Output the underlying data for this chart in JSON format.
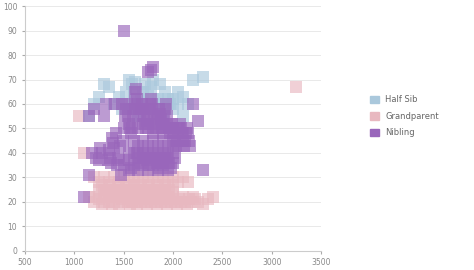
{
  "title": "",
  "xlim": [
    500,
    3500
  ],
  "ylim": [
    0,
    100
  ],
  "xticks": [
    500,
    1000,
    1500,
    2000,
    2500,
    3000,
    3500
  ],
  "yticks": [
    0,
    10,
    20,
    30,
    40,
    50,
    60,
    70,
    80,
    90,
    100
  ],
  "background_color": "#ffffff",
  "grid_color": "#e0e0e0",
  "legend": [
    {
      "label": "Half Sib",
      "color": "#aac8dc"
    },
    {
      "label": "Grandparent",
      "color": "#e8b8c0"
    },
    {
      "label": "Nibling",
      "color": "#9966bb"
    }
  ],
  "half_sib_seed": 10,
  "grandparent_seed": 20,
  "nibling_seed": 30,
  "half_sib": {
    "color": "#aac8dc",
    "points": [
      [
        1300,
        68
      ],
      [
        1350,
        67
      ],
      [
        1400,
        60
      ],
      [
        1450,
        63
      ],
      [
        1480,
        58
      ],
      [
        1500,
        60
      ],
      [
        1520,
        65
      ],
      [
        1550,
        70
      ],
      [
        1580,
        68
      ],
      [
        1600,
        65
      ],
      [
        1620,
        69
      ],
      [
        1650,
        60
      ],
      [
        1680,
        62
      ],
      [
        1700,
        65
      ],
      [
        1720,
        68
      ],
      [
        1750,
        65
      ],
      [
        1780,
        67
      ],
      [
        1800,
        70
      ],
      [
        1820,
        60
      ],
      [
        1850,
        62
      ],
      [
        1870,
        68
      ],
      [
        1900,
        60
      ],
      [
        1920,
        65
      ],
      [
        1950,
        62
      ],
      [
        1970,
        60
      ],
      [
        2000,
        62
      ],
      [
        2050,
        65
      ],
      [
        2100,
        63
      ],
      [
        2150,
        60
      ],
      [
        2200,
        70
      ],
      [
        2300,
        71
      ],
      [
        1150,
        55
      ],
      [
        1200,
        60
      ],
      [
        1250,
        63
      ],
      [
        1550,
        58
      ],
      [
        1600,
        60
      ],
      [
        1650,
        55
      ],
      [
        1700,
        60
      ],
      [
        1750,
        58
      ],
      [
        1800,
        62
      ],
      [
        1850,
        60
      ],
      [
        1900,
        55
      ],
      [
        1950,
        60
      ],
      [
        2000,
        58
      ],
      [
        2050,
        60
      ],
      [
        2100,
        55
      ]
    ]
  },
  "grandparent": {
    "color": "#e8b8c0",
    "points": [
      [
        1050,
        55
      ],
      [
        1100,
        40
      ],
      [
        1150,
        22
      ],
      [
        1200,
        20
      ],
      [
        1220,
        22
      ],
      [
        1250,
        21
      ],
      [
        1280,
        19
      ],
      [
        1300,
        20
      ],
      [
        1320,
        22
      ],
      [
        1350,
        20
      ],
      [
        1380,
        19
      ],
      [
        1400,
        20
      ],
      [
        1420,
        22
      ],
      [
        1450,
        19
      ],
      [
        1480,
        21
      ],
      [
        1500,
        20
      ],
      [
        1520,
        22
      ],
      [
        1540,
        20
      ],
      [
        1560,
        19
      ],
      [
        1580,
        20
      ],
      [
        1600,
        22
      ],
      [
        1620,
        20
      ],
      [
        1640,
        19
      ],
      [
        1660,
        21
      ],
      [
        1680,
        20
      ],
      [
        1700,
        22
      ],
      [
        1720,
        20
      ],
      [
        1740,
        19
      ],
      [
        1760,
        21
      ],
      [
        1780,
        20
      ],
      [
        1800,
        22
      ],
      [
        1820,
        20
      ],
      [
        1840,
        19
      ],
      [
        1860,
        21
      ],
      [
        1880,
        20
      ],
      [
        1900,
        22
      ],
      [
        1920,
        20
      ],
      [
        1940,
        19
      ],
      [
        1960,
        21
      ],
      [
        1980,
        20
      ],
      [
        2000,
        22
      ],
      [
        2020,
        20
      ],
      [
        2040,
        19
      ],
      [
        2060,
        21
      ],
      [
        2080,
        20
      ],
      [
        2100,
        22
      ],
      [
        2120,
        20
      ],
      [
        2140,
        19
      ],
      [
        2160,
        21
      ],
      [
        2180,
        20
      ],
      [
        2200,
        22
      ],
      [
        2220,
        21
      ],
      [
        2250,
        20
      ],
      [
        2300,
        19
      ],
      [
        2350,
        21
      ],
      [
        2400,
        22
      ],
      [
        3250,
        67
      ],
      [
        1300,
        25
      ],
      [
        1350,
        23
      ],
      [
        1400,
        24
      ],
      [
        1450,
        22
      ],
      [
        1500,
        23
      ],
      [
        1550,
        22
      ],
      [
        1600,
        24
      ],
      [
        1650,
        22
      ],
      [
        1700,
        23
      ],
      [
        1750,
        22
      ],
      [
        1800,
        24
      ],
      [
        1850,
        22
      ],
      [
        1900,
        23
      ],
      [
        1950,
        22
      ],
      [
        2000,
        24
      ],
      [
        1250,
        25
      ],
      [
        1280,
        27
      ],
      [
        1320,
        25
      ],
      [
        1360,
        27
      ],
      [
        1400,
        25
      ],
      [
        1440,
        27
      ],
      [
        1480,
        25
      ],
      [
        1520,
        27
      ],
      [
        1560,
        25
      ],
      [
        1600,
        27
      ],
      [
        1640,
        25
      ],
      [
        1680,
        27
      ],
      [
        1720,
        25
      ],
      [
        1760,
        27
      ],
      [
        1800,
        25
      ],
      [
        1840,
        27
      ],
      [
        1880,
        25
      ],
      [
        1920,
        27
      ],
      [
        1960,
        25
      ],
      [
        2000,
        27
      ],
      [
        1200,
        30
      ],
      [
        1250,
        28
      ],
      [
        1300,
        30
      ],
      [
        1350,
        28
      ],
      [
        1400,
        30
      ],
      [
        1450,
        28
      ],
      [
        1500,
        30
      ],
      [
        1550,
        28
      ],
      [
        1600,
        30
      ],
      [
        1650,
        28
      ],
      [
        1700,
        30
      ],
      [
        1750,
        28
      ],
      [
        1800,
        30
      ],
      [
        1850,
        28
      ],
      [
        1900,
        30
      ],
      [
        1950,
        28
      ],
      [
        2000,
        30
      ],
      [
        2050,
        28
      ],
      [
        2100,
        30
      ],
      [
        2150,
        28
      ]
    ]
  },
  "nibling": {
    "color": "#9966bb",
    "points": [
      [
        1100,
        22
      ],
      [
        1150,
        31
      ],
      [
        1150,
        55
      ],
      [
        1180,
        40
      ],
      [
        1200,
        58
      ],
      [
        1220,
        38
      ],
      [
        1250,
        37
      ],
      [
        1260,
        42
      ],
      [
        1280,
        40
      ],
      [
        1300,
        55
      ],
      [
        1320,
        60
      ],
      [
        1340,
        37
      ],
      [
        1350,
        41
      ],
      [
        1360,
        38
      ],
      [
        1370,
        36
      ],
      [
        1380,
        46
      ],
      [
        1390,
        44
      ],
      [
        1400,
        42
      ],
      [
        1410,
        60
      ],
      [
        1420,
        48
      ],
      [
        1430,
        35
      ],
      [
        1440,
        38
      ],
      [
        1450,
        37
      ],
      [
        1460,
        43
      ],
      [
        1470,
        31
      ],
      [
        1480,
        60
      ],
      [
        1490,
        45
      ],
      [
        1500,
        50
      ],
      [
        1500,
        90
      ],
      [
        1510,
        55
      ],
      [
        1520,
        58
      ],
      [
        1530,
        60
      ],
      [
        1540,
        55
      ],
      [
        1550,
        52
      ],
      [
        1550,
        37
      ],
      [
        1560,
        50
      ],
      [
        1570,
        48
      ],
      [
        1570,
        34
      ],
      [
        1580,
        50
      ],
      [
        1590,
        55
      ],
      [
        1600,
        58
      ],
      [
        1610,
        60
      ],
      [
        1620,
        65
      ],
      [
        1630,
        66
      ],
      [
        1640,
        40
      ],
      [
        1640,
        62
      ],
      [
        1650,
        60
      ],
      [
        1660,
        38
      ],
      [
        1660,
        58
      ],
      [
        1670,
        55
      ],
      [
        1680,
        36
      ],
      [
        1680,
        58
      ],
      [
        1690,
        60
      ],
      [
        1700,
        40
      ],
      [
        1700,
        58
      ],
      [
        1710,
        55
      ],
      [
        1720,
        38
      ],
      [
        1720,
        52
      ],
      [
        1730,
        50
      ],
      [
        1740,
        37
      ],
      [
        1740,
        53
      ],
      [
        1750,
        55
      ],
      [
        1750,
        73
      ],
      [
        1760,
        35
      ],
      [
        1760,
        58
      ],
      [
        1770,
        60
      ],
      [
        1780,
        38
      ],
      [
        1780,
        62
      ],
      [
        1780,
        74
      ],
      [
        1790,
        60
      ],
      [
        1800,
        40
      ],
      [
        1800,
        58
      ],
      [
        1800,
        75
      ],
      [
        1810,
        55
      ],
      [
        1820,
        38
      ],
      [
        1820,
        52
      ],
      [
        1830,
        50
      ],
      [
        1840,
        36
      ],
      [
        1840,
        53
      ],
      [
        1850,
        55
      ],
      [
        1860,
        34
      ],
      [
        1860,
        58
      ],
      [
        1870,
        56
      ],
      [
        1880,
        36
      ],
      [
        1880,
        54
      ],
      [
        1890,
        50
      ],
      [
        1900,
        38
      ],
      [
        1900,
        52
      ],
      [
        1910,
        55
      ],
      [
        1920,
        40
      ],
      [
        1920,
        58
      ],
      [
        1930,
        60
      ],
      [
        1940,
        38
      ],
      [
        1940,
        55
      ],
      [
        1950,
        52
      ],
      [
        1960,
        36
      ],
      [
        1960,
        50
      ],
      [
        1970,
        48
      ],
      [
        1980,
        34
      ],
      [
        1980,
        50
      ],
      [
        1990,
        52
      ],
      [
        2000,
        36
      ],
      [
        2000,
        50
      ],
      [
        2010,
        48
      ],
      [
        2020,
        38
      ],
      [
        2020,
        45
      ],
      [
        2030,
        43
      ],
      [
        2040,
        45
      ],
      [
        2050,
        48
      ],
      [
        2060,
        50
      ],
      [
        2070,
        52
      ],
      [
        2080,
        50
      ],
      [
        2090,
        48
      ],
      [
        2100,
        45
      ],
      [
        2110,
        43
      ],
      [
        2120,
        45
      ],
      [
        2130,
        48
      ],
      [
        2140,
        50
      ],
      [
        2150,
        48
      ],
      [
        2160,
        45
      ],
      [
        2170,
        43
      ],
      [
        2200,
        60
      ],
      [
        2250,
        53
      ],
      [
        2300,
        33
      ],
      [
        1650,
        50
      ],
      [
        1700,
        52
      ],
      [
        1750,
        50
      ],
      [
        1800,
        48
      ],
      [
        1850,
        50
      ],
      [
        1900,
        48
      ],
      [
        1950,
        50
      ],
      [
        2000,
        48
      ],
      [
        2050,
        50
      ],
      [
        2100,
        48
      ],
      [
        1600,
        45
      ],
      [
        1650,
        43
      ],
      [
        1700,
        45
      ],
      [
        1750,
        43
      ],
      [
        1800,
        45
      ],
      [
        1850,
        43
      ],
      [
        1900,
        45
      ],
      [
        1950,
        43
      ],
      [
        2000,
        45
      ],
      [
        2050,
        43
      ],
      [
        1550,
        40
      ],
      [
        1600,
        40
      ],
      [
        1650,
        38
      ],
      [
        1700,
        40
      ],
      [
        1750,
        38
      ],
      [
        1800,
        40
      ],
      [
        1850,
        38
      ],
      [
        1900,
        40
      ],
      [
        1950,
        38
      ],
      [
        2000,
        40
      ],
      [
        1500,
        35
      ],
      [
        1550,
        33
      ],
      [
        1600,
        35
      ],
      [
        1650,
        33
      ],
      [
        1700,
        35
      ],
      [
        1750,
        33
      ],
      [
        1800,
        35
      ],
      [
        1850,
        33
      ],
      [
        1900,
        35
      ],
      [
        1950,
        33
      ]
    ]
  },
  "marker_size": 8,
  "alpha": 0.65
}
